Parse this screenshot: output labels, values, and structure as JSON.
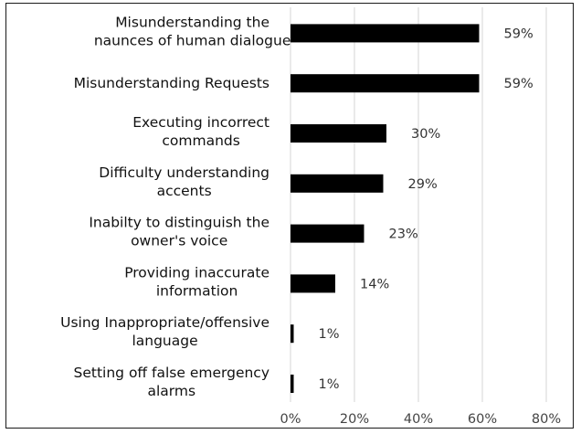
{
  "chart_data": {
    "type": "bar",
    "orientation": "horizontal",
    "categories": [
      [
        "Misunderstanding  the",
        "naunces of human dialogue"
      ],
      [
        "Misunderstanding  Requests"
      ],
      [
        "Executing incorrect",
        "commands"
      ],
      [
        "Difficulty understanding",
        "accents"
      ],
      [
        "Inabilty to distinguish the",
        "owner's voice"
      ],
      [
        "Providing inaccurate",
        "information"
      ],
      [
        "Using Inappropriate/offensive",
        "language"
      ],
      [
        "Setting off false emergency",
        "alarms"
      ]
    ],
    "values": [
      59,
      59,
      30,
      29,
      23,
      14,
      1,
      1
    ],
    "value_labels": [
      "59%",
      "59%",
      "30%",
      "29%",
      "23%",
      "14%",
      "1%",
      "1%"
    ],
    "xlim": [
      0,
      80
    ],
    "xticks": [
      0,
      20,
      40,
      60,
      80
    ],
    "xtick_labels": [
      "0%",
      "20%",
      "40%",
      "60%",
      "80%"
    ],
    "grid": "vertical",
    "legend": "none",
    "colors": {
      "bar": "#000000",
      "grid": "#d6d6d6",
      "frame": "#1a1a1a"
    }
  }
}
